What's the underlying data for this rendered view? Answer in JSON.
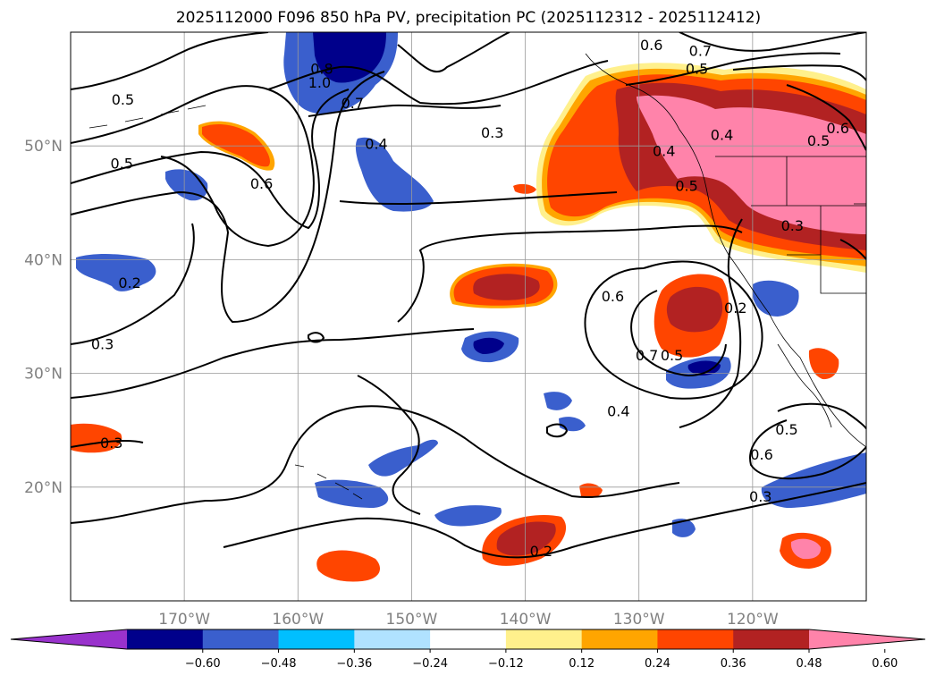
{
  "title": "2025112000 F096 850 hPa PV, precipitation PC (2025112312 - 2025112412)",
  "map": {
    "lon_range": [
      -180,
      -110
    ],
    "lat_range": [
      10,
      60
    ],
    "lon_ticks": [
      {
        "value": -170,
        "label": "170°W"
      },
      {
        "value": -160,
        "label": "160°W"
      },
      {
        "value": -150,
        "label": "150°W"
      },
      {
        "value": -140,
        "label": "140°W"
      },
      {
        "value": -130,
        "label": "130°W"
      },
      {
        "value": -120,
        "label": "120°W"
      }
    ],
    "lat_ticks": [
      {
        "value": 50,
        "label": "50°N"
      },
      {
        "value": 40,
        "label": "40°N"
      },
      {
        "value": 30,
        "label": "30°N"
      },
      {
        "value": 20,
        "label": "20°N"
      }
    ],
    "grid": true,
    "pv_contour_labels": [
      {
        "text": "0.5",
        "lon": -175.4,
        "lat": 54.1
      },
      {
        "text": "0.8",
        "lon": -157.9,
        "lat": 56.8
      },
      {
        "text": "1.0",
        "lon": -158.1,
        "lat": 55.6
      },
      {
        "text": "0.7",
        "lon": -155.2,
        "lat": 53.8
      },
      {
        "text": "0.4",
        "lon": -153.1,
        "lat": 50.2
      },
      {
        "text": "0.3",
        "lon": -142.9,
        "lat": 51.2
      },
      {
        "text": "0.6",
        "lon": -128.9,
        "lat": 58.9
      },
      {
        "text": "0.7",
        "lon": -124.6,
        "lat": 58.4
      },
      {
        "text": "0.5",
        "lon": -124.9,
        "lat": 56.8
      },
      {
        "text": "0.4",
        "lon": -127.8,
        "lat": 49.6
      },
      {
        "text": "0.4",
        "lon": -122.7,
        "lat": 51.0
      },
      {
        "text": "0.6",
        "lon": -112.5,
        "lat": 51.6
      },
      {
        "text": "0.5",
        "lon": -114.2,
        "lat": 50.5
      },
      {
        "text": "0.5",
        "lon": -125.8,
        "lat": 46.5
      },
      {
        "text": "0.5",
        "lon": -175.5,
        "lat": 48.5
      },
      {
        "text": "0.6",
        "lon": -163.2,
        "lat": 46.7
      },
      {
        "text": "0.3",
        "lon": -116.5,
        "lat": 43.0
      },
      {
        "text": "0.2",
        "lon": -174.8,
        "lat": 38.0
      },
      {
        "text": "0.3",
        "lon": -177.2,
        "lat": 32.6
      },
      {
        "text": "0.6",
        "lon": -132.3,
        "lat": 36.8
      },
      {
        "text": "0.7",
        "lon": -129.3,
        "lat": 31.6
      },
      {
        "text": "0.5",
        "lon": -127.1,
        "lat": 31.6
      },
      {
        "text": "0.2",
        "lon": -121.5,
        "lat": 35.8
      },
      {
        "text": "0.4",
        "lon": -131.8,
        "lat": 26.7
      },
      {
        "text": "0.5",
        "lon": -117.0,
        "lat": 25.1
      },
      {
        "text": "0.6",
        "lon": -119.2,
        "lat": 22.9
      },
      {
        "text": "0.3",
        "lon": -176.4,
        "lat": 23.9
      },
      {
        "text": "0.2",
        "lon": -138.6,
        "lat": 14.4
      },
      {
        "text": "0.3",
        "lon": -119.3,
        "lat": 19.2
      }
    ]
  },
  "colorbar": {
    "levels": [
      "−0.60",
      "−0.48",
      "−0.36",
      "−0.24",
      "−0.12",
      "0.12",
      "0.24",
      "0.36",
      "0.48",
      "0.60"
    ],
    "colors": [
      "#9932cc",
      "#00008b",
      "#3a5fcd",
      "#00bfff",
      "#b0e2ff",
      "#ffffff",
      "#fff08c",
      "#ffa500",
      "#ff4500",
      "#b22222",
      "#ff83aa"
    ]
  }
}
